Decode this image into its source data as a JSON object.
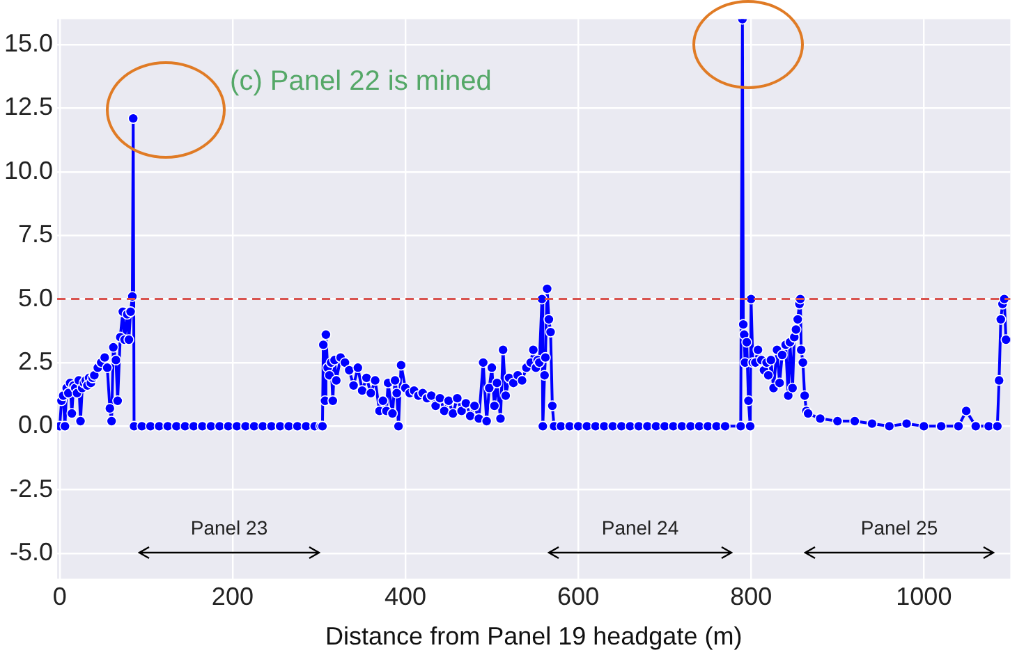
{
  "chart_data": {
    "type": "line",
    "xlabel": "Distance from Panel 19 headgate (m)",
    "x": [
      0,
      2,
      4,
      6,
      8,
      10,
      12,
      14,
      16,
      18,
      20,
      22,
      24,
      26,
      28,
      30,
      32,
      34,
      36,
      38,
      40,
      44,
      48,
      52,
      55,
      58,
      60,
      62,
      65,
      67,
      70,
      73,
      75,
      78,
      80,
      82,
      84,
      85,
      86,
      95,
      105,
      115,
      125,
      135,
      145,
      155,
      165,
      175,
      185,
      195,
      205,
      215,
      225,
      235,
      245,
      255,
      265,
      275,
      285,
      295,
      302,
      304,
      305,
      307,
      308,
      310,
      312,
      314,
      316,
      318,
      320,
      325,
      330,
      335,
      340,
      345,
      350,
      355,
      360,
      365,
      370,
      374,
      378,
      380,
      385,
      388,
      390,
      392,
      395,
      400,
      405,
      410,
      415,
      420,
      425,
      430,
      435,
      440,
      445,
      450,
      455,
      460,
      465,
      470,
      475,
      480,
      485,
      490,
      494,
      497,
      500,
      503,
      506,
      510,
      513,
      516,
      520,
      525,
      530,
      535,
      540,
      545,
      548,
      551,
      553,
      555,
      558,
      559,
      561,
      562,
      564,
      566,
      568,
      570,
      572,
      580,
      590,
      600,
      610,
      620,
      630,
      640,
      650,
      660,
      670,
      680,
      690,
      700,
      710,
      720,
      730,
      740,
      750,
      760,
      770,
      788,
      790,
      791,
      792,
      793,
      795,
      797,
      799,
      800,
      802,
      805,
      808,
      812,
      815,
      818,
      820,
      823,
      826,
      830,
      833,
      836,
      840,
      843,
      845,
      848,
      850,
      852,
      854,
      856,
      857,
      858,
      860,
      862,
      864,
      866,
      880,
      900,
      920,
      940,
      960,
      980,
      1000,
      1020,
      1040,
      1049,
      1060,
      1075,
      1085,
      1087,
      1089,
      1091,
      1093,
      1095
    ],
    "series": [
      {
        "color": "#0000ff",
        "values": [
          0,
          1.0,
          1.2,
          0,
          1.5,
          1.3,
          1.7,
          0.5,
          1.6,
          1.5,
          1.3,
          1.8,
          0.2,
          1.5,
          1.7,
          1.8,
          1.6,
          1.9,
          1.7,
          1.9,
          2.0,
          2.3,
          2.5,
          2.7,
          2.3,
          0.7,
          0.2,
          3.1,
          2.6,
          1.0,
          3.5,
          4.5,
          3.4,
          4.4,
          3.4,
          4.5,
          5.1,
          12.1,
          0,
          0,
          0,
          0,
          0,
          0,
          0,
          0,
          0,
          0,
          0,
          0,
          0,
          0,
          0,
          0,
          0,
          0,
          0,
          0,
          0,
          0,
          0,
          0,
          3.2,
          1.0,
          3.6,
          2.3,
          2.0,
          2.5,
          1.0,
          2.6,
          1.8,
          2.7,
          2.5,
          2.2,
          1.6,
          2.3,
          1.4,
          1.9,
          1.3,
          1.8,
          0.6,
          1.0,
          0.6,
          1.7,
          0.5,
          1.8,
          1.3,
          0,
          2.4,
          1.5,
          1.3,
          1.4,
          1.2,
          1.3,
          1.1,
          1.2,
          0.8,
          1.1,
          0.6,
          1.0,
          0.5,
          1.1,
          0.6,
          0.9,
          0.4,
          0.8,
          0.3,
          2.5,
          0.2,
          1.5,
          2.3,
          0.8,
          1.7,
          0.3,
          3.0,
          1.2,
          1.9,
          1.7,
          2.0,
          1.8,
          2.3,
          2.5,
          3.0,
          2.3,
          2.6,
          2.5,
          5.0,
          0,
          2.0,
          2.7,
          5.4,
          4.2,
          3.7,
          0.8,
          0,
          0,
          0,
          0,
          0,
          0,
          0,
          0,
          0,
          0,
          0,
          0,
          0,
          0,
          0,
          0,
          0,
          0,
          0,
          0,
          0,
          0,
          16,
          4.0,
          3.6,
          2.5,
          3.3,
          1.0,
          0,
          5.0,
          2.5,
          2.5,
          3.0,
          2.6,
          2.2,
          2.5,
          2.0,
          2.6,
          1.5,
          3.0,
          1.7,
          2.8,
          3.2,
          1.2,
          3.3,
          1.5,
          3.5,
          3.8,
          4.2,
          4.8,
          5.0,
          3.0,
          2.5,
          1.2,
          0.6,
          0.5,
          0.3,
          0.2,
          0.2,
          0.1,
          0,
          0.1,
          0,
          0,
          0,
          0.6,
          0,
          0,
          0,
          1.8,
          4.2,
          4.8,
          5.0,
          3.4
        ]
      }
    ],
    "xlim": [
      -3,
      1100
    ],
    "ylim": [
      -6,
      16
    ],
    "xticks": [
      0,
      200,
      400,
      600,
      800,
      1000
    ],
    "yticks": [
      {
        "value": -5,
        "label": "-5.0"
      },
      {
        "value": -2.5,
        "label": "-2.5"
      },
      {
        "value": 0,
        "label": "0.0"
      },
      {
        "value": 2.5,
        "label": "2.5"
      },
      {
        "value": 5,
        "label": "5.0"
      },
      {
        "value": 7.5,
        "label": "7.5"
      },
      {
        "value": 10,
        "label": "10.0"
      },
      {
        "value": 12.5,
        "label": "12.5"
      },
      {
        "value": 15,
        "label": "15.0"
      }
    ],
    "grid": true,
    "legend": false,
    "marker": "circle",
    "line_style": "solid",
    "ref_lines": [
      {
        "axis": "y",
        "value": 5,
        "color": "#d9534f",
        "line_style": "dashed"
      }
    ],
    "annotations": [
      "(c) Panel 22 is mined",
      "Panel 23",
      "Panel 24",
      "Panel 25"
    ]
  }
}
